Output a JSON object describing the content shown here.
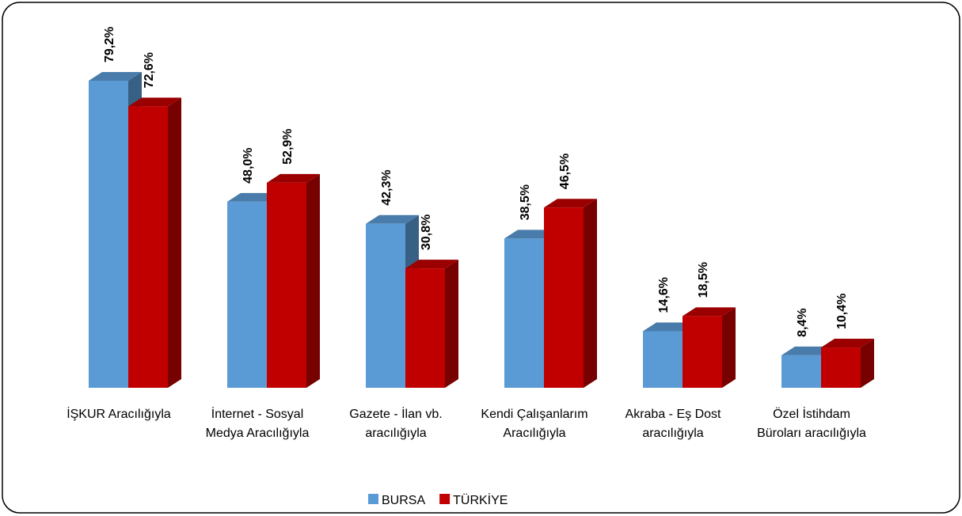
{
  "chart_data": {
    "type": "bar3d",
    "categories": [
      "İŞKUR Aracılığıyla",
      "İnternet - Sosyal Medya Aracılığıyla",
      "Gazete - İlan vb. aracılığıyla",
      "Kendi Çalışanlarım Aracılığıyla",
      "Akraba - Eş Dost aracılığıyla",
      "Özel İstihdam Büroları aracılığıyla"
    ],
    "series": [
      {
        "name": "BURSA",
        "color": "#5b9bd5",
        "values": [
          79.2,
          48.0,
          42.3,
          38.5,
          14.6,
          8.4
        ],
        "value_labels": [
          "79,2%",
          "48,0%",
          "42,3%",
          "38,5%",
          "14,6%",
          "8,4%"
        ]
      },
      {
        "name": "TÜRKİYE",
        "color": "#c00000",
        "values": [
          72.6,
          52.9,
          30.8,
          46.5,
          18.5,
          10.4
        ],
        "value_labels": [
          "72,6%",
          "52,9%",
          "30,8%",
          "46,5%",
          "18,5%",
          "10,4%"
        ]
      }
    ],
    "legend": "bottom"
  }
}
